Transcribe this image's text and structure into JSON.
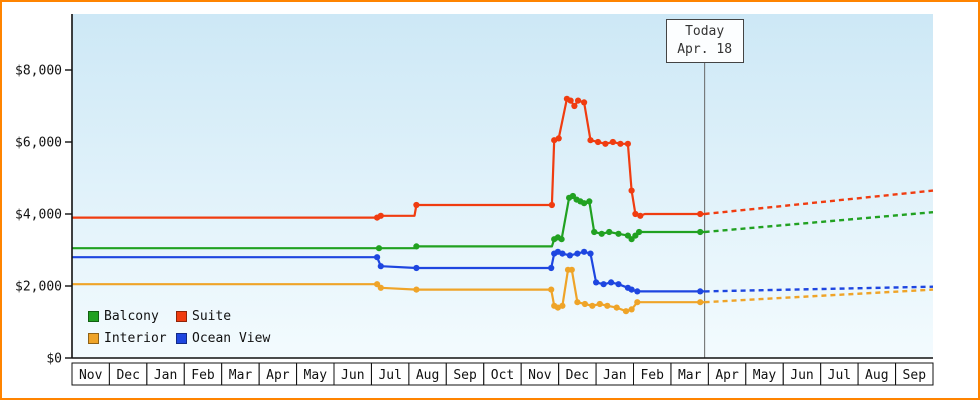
{
  "chart_data": {
    "type": "line",
    "title": "",
    "subtitle": "",
    "y_ticks": [
      "$0",
      "$2,000",
      "$4,000",
      "$6,000",
      "$8,000"
    ],
    "y_tick_values": [
      0,
      2000,
      4000,
      6000,
      8000
    ],
    "ylim": [
      0,
      9550
    ],
    "grid": false,
    "legend_position": "bottom-left",
    "x_months": [
      "Nov",
      "Dec",
      "Jan",
      "Feb",
      "Mar",
      "Apr",
      "May",
      "Jun",
      "Jul",
      "Aug",
      "Sep",
      "Oct",
      "Nov",
      "Dec",
      "Jan",
      "Feb",
      "Mar",
      "Apr",
      "May",
      "Jun",
      "Jul",
      "Aug",
      "Sep"
    ],
    "today": {
      "label_line1": "Today",
      "label_line2": "Apr. 18",
      "month_index": 16.9
    },
    "colors": {
      "frame_border": "#ff8400",
      "axis": "#111111",
      "text": "#111111",
      "plot_bg_top": "#cde8f6",
      "plot_bg_bottom": "#f3fbfe",
      "today_line": "#666666",
      "today_box_border": "#444444",
      "month_cell_fill": "#ffffff"
    },
    "legend": [
      {
        "label": "Balcony",
        "color": "#21a121"
      },
      {
        "label": "Suite",
        "color": "#f03c10"
      },
      {
        "label": "Interior",
        "color": "#efa428"
      },
      {
        "label": "Ocean View",
        "color": "#1e46e0"
      }
    ],
    "series": [
      {
        "id": "interior",
        "name": "Interior",
        "color": "#efa428",
        "history": [
          [
            0,
            2050
          ],
          [
            8.15,
            2050
          ],
          [
            8.25,
            1950
          ],
          [
            9.2,
            1900
          ],
          [
            12.8,
            1900
          ],
          [
            12.88,
            1450
          ],
          [
            12.98,
            1400
          ],
          [
            13.1,
            1450
          ],
          [
            13.25,
            2450
          ],
          [
            13.35,
            2450
          ],
          [
            13.5,
            1550
          ],
          [
            13.7,
            1500
          ],
          [
            13.9,
            1450
          ],
          [
            14.1,
            1500
          ],
          [
            14.3,
            1450
          ],
          [
            14.55,
            1400
          ],
          [
            14.8,
            1300
          ],
          [
            14.95,
            1350
          ],
          [
            15.1,
            1550
          ],
          [
            16.78,
            1550
          ],
          [
            16.9,
            1550
          ]
        ],
        "markers": [
          [
            8.15,
            2050
          ],
          [
            8.25,
            1950
          ],
          [
            9.2,
            1900
          ],
          [
            12.8,
            1900
          ],
          [
            12.88,
            1450
          ],
          [
            12.98,
            1400
          ],
          [
            13.1,
            1450
          ],
          [
            13.25,
            2450
          ],
          [
            13.35,
            2450
          ],
          [
            13.5,
            1550
          ],
          [
            13.7,
            1500
          ],
          [
            13.9,
            1450
          ],
          [
            14.1,
            1500
          ],
          [
            14.3,
            1450
          ],
          [
            14.55,
            1400
          ],
          [
            14.8,
            1300
          ],
          [
            14.95,
            1350
          ],
          [
            15.1,
            1550
          ],
          [
            16.78,
            1550
          ]
        ],
        "forecast": [
          [
            16.9,
            1550
          ],
          [
            23,
            1900
          ]
        ]
      },
      {
        "id": "oceanview",
        "name": "Ocean View",
        "color": "#1e46e0",
        "history": [
          [
            0,
            2800
          ],
          [
            8.15,
            2800
          ],
          [
            8.25,
            2550
          ],
          [
            9.2,
            2500
          ],
          [
            12.8,
            2500
          ],
          [
            12.88,
            2900
          ],
          [
            12.98,
            2950
          ],
          [
            13.1,
            2900
          ],
          [
            13.3,
            2850
          ],
          [
            13.5,
            2900
          ],
          [
            13.68,
            2950
          ],
          [
            13.85,
            2900
          ],
          [
            14.0,
            2100
          ],
          [
            14.2,
            2050
          ],
          [
            14.4,
            2100
          ],
          [
            14.6,
            2050
          ],
          [
            14.85,
            1950
          ],
          [
            14.95,
            1900
          ],
          [
            15.1,
            1850
          ],
          [
            16.78,
            1850
          ],
          [
            16.9,
            1850
          ]
        ],
        "markers": [
          [
            8.15,
            2800
          ],
          [
            8.25,
            2550
          ],
          [
            9.2,
            2500
          ],
          [
            12.8,
            2500
          ],
          [
            12.88,
            2900
          ],
          [
            12.98,
            2950
          ],
          [
            13.1,
            2900
          ],
          [
            13.3,
            2850
          ],
          [
            13.5,
            2900
          ],
          [
            13.68,
            2950
          ],
          [
            13.85,
            2900
          ],
          [
            14.0,
            2100
          ],
          [
            14.2,
            2050
          ],
          [
            14.4,
            2100
          ],
          [
            14.6,
            2050
          ],
          [
            14.85,
            1950
          ],
          [
            14.95,
            1900
          ],
          [
            15.1,
            1850
          ],
          [
            16.78,
            1850
          ]
        ],
        "forecast": [
          [
            16.9,
            1850
          ],
          [
            23,
            1980
          ]
        ]
      },
      {
        "id": "balcony",
        "name": "Balcony",
        "color": "#21a121",
        "history": [
          [
            0,
            3050
          ],
          [
            9.15,
            3050
          ],
          [
            9.2,
            3100
          ],
          [
            12.82,
            3100
          ],
          [
            12.88,
            3300
          ],
          [
            12.98,
            3350
          ],
          [
            13.08,
            3300
          ],
          [
            13.28,
            4450
          ],
          [
            13.38,
            4500
          ],
          [
            13.48,
            4400
          ],
          [
            13.58,
            4350
          ],
          [
            13.68,
            4300
          ],
          [
            13.82,
            4350
          ],
          [
            13.95,
            3500
          ],
          [
            14.15,
            3450
          ],
          [
            14.35,
            3500
          ],
          [
            14.6,
            3450
          ],
          [
            14.85,
            3400
          ],
          [
            14.95,
            3300
          ],
          [
            15.05,
            3400
          ],
          [
            15.15,
            3500
          ],
          [
            16.78,
            3500
          ],
          [
            16.9,
            3500
          ]
        ],
        "markers": [
          [
            8.2,
            3050
          ],
          [
            9.2,
            3100
          ],
          [
            12.88,
            3300
          ],
          [
            12.98,
            3350
          ],
          [
            13.08,
            3300
          ],
          [
            13.28,
            4450
          ],
          [
            13.38,
            4500
          ],
          [
            13.48,
            4400
          ],
          [
            13.58,
            4350
          ],
          [
            13.68,
            4300
          ],
          [
            13.82,
            4350
          ],
          [
            13.95,
            3500
          ],
          [
            14.15,
            3450
          ],
          [
            14.35,
            3500
          ],
          [
            14.6,
            3450
          ],
          [
            14.85,
            3400
          ],
          [
            14.95,
            3300
          ],
          [
            15.05,
            3400
          ],
          [
            15.15,
            3500
          ],
          [
            16.78,
            3500
          ]
        ],
        "forecast": [
          [
            16.9,
            3500
          ],
          [
            23,
            4050
          ]
        ]
      },
      {
        "id": "suite",
        "name": "Suite",
        "color": "#f03c10",
        "history": [
          [
            0,
            3900
          ],
          [
            8.15,
            3900
          ],
          [
            8.25,
            3950
          ],
          [
            9.15,
            3950
          ],
          [
            9.2,
            4250
          ],
          [
            12.82,
            4250
          ],
          [
            12.88,
            6050
          ],
          [
            13.0,
            6100
          ],
          [
            13.22,
            7200
          ],
          [
            13.32,
            7150
          ],
          [
            13.42,
            7000
          ],
          [
            13.52,
            7150
          ],
          [
            13.68,
            7100
          ],
          [
            13.85,
            6050
          ],
          [
            14.05,
            6000
          ],
          [
            14.25,
            5950
          ],
          [
            14.45,
            6000
          ],
          [
            14.65,
            5950
          ],
          [
            14.85,
            5950
          ],
          [
            14.95,
            4650
          ],
          [
            15.05,
            4000
          ],
          [
            15.18,
            3950
          ],
          [
            15.3,
            4000
          ],
          [
            16.78,
            4000
          ],
          [
            16.9,
            4000
          ]
        ],
        "markers": [
          [
            8.15,
            3900
          ],
          [
            8.25,
            3950
          ],
          [
            9.2,
            4250
          ],
          [
            12.82,
            4250
          ],
          [
            12.88,
            6050
          ],
          [
            13.0,
            6100
          ],
          [
            13.22,
            7200
          ],
          [
            13.32,
            7150
          ],
          [
            13.42,
            7000
          ],
          [
            13.52,
            7150
          ],
          [
            13.68,
            7100
          ],
          [
            13.85,
            6050
          ],
          [
            14.05,
            6000
          ],
          [
            14.25,
            5950
          ],
          [
            14.45,
            6000
          ],
          [
            14.65,
            5950
          ],
          [
            14.85,
            5950
          ],
          [
            14.95,
            4650
          ],
          [
            15.05,
            4000
          ],
          [
            15.18,
            3950
          ],
          [
            16.78,
            4000
          ]
        ],
        "forecast": [
          [
            16.9,
            4000
          ],
          [
            23,
            4650
          ]
        ]
      }
    ]
  }
}
